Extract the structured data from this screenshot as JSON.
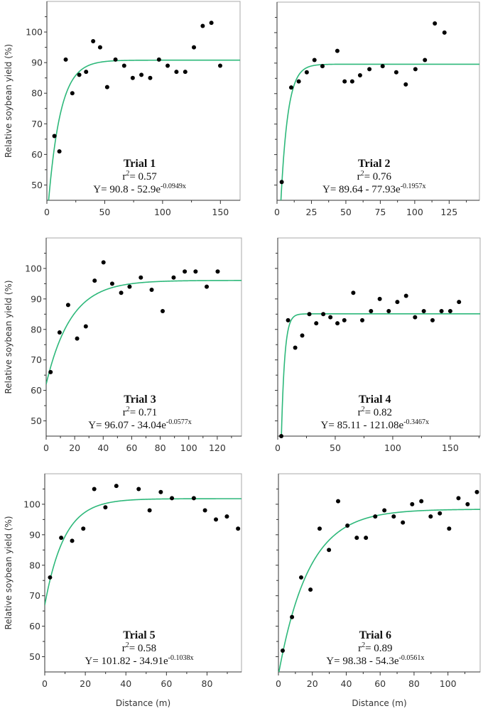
{
  "chart_data": [
    {
      "type": "scatter",
      "title": "Trial 1",
      "r2_prefix": "r",
      "r2_sup": "2",
      "r2_text": "= 0.57",
      "eq_main": "Y= 90.8 - 52.9e",
      "eq_exp": "-0.0949x",
      "fit": {
        "a": 90.8,
        "b": 52.9,
        "c": 0.0949
      },
      "xlim": [
        0,
        167
      ],
      "ylim": [
        45,
        110
      ],
      "xticks": [
        0,
        50,
        100,
        150
      ],
      "yticks": [
        50,
        60,
        70,
        80,
        90,
        100
      ],
      "xlabel": "",
      "ylabel": "Relative soybean yield (%)",
      "x": [
        6.5,
        10.8,
        16.3,
        22,
        28,
        33.9,
        40,
        46,
        52.1,
        59.3,
        66.8,
        74.2,
        81.7,
        89.3,
        96.9,
        104.4,
        112,
        119.6,
        127.1,
        134.7,
        142.2,
        149.8
      ],
      "y": [
        66,
        61,
        91,
        80,
        86,
        87,
        97,
        95,
        82,
        91,
        89,
        85,
        86,
        85,
        91,
        89,
        87,
        87,
        95,
        102,
        103,
        89
      ]
    },
    {
      "type": "scatter",
      "title": "Trial 2",
      "r2_prefix": "r",
      "r2_sup": "2",
      "r2_text": "= 0.76",
      "eq_main": "Y= 89.64  - 77.93e",
      "eq_exp": "-0.1957x",
      "fit": {
        "a": 89.64,
        "b": 77.93,
        "c": 0.1957
      },
      "xlim": [
        0,
        147
      ],
      "ylim": [
        45,
        110
      ],
      "xticks": [
        0,
        25,
        50,
        75,
        100,
        125
      ],
      "yticks": [],
      "xlabel": "",
      "ylabel": "",
      "x": [
        3.4,
        10.3,
        15.8,
        21.6,
        27.2,
        33,
        43.8,
        49.1,
        54.6,
        60.3,
        67.1,
        76.7,
        86.6,
        93.5,
        100.5,
        107.4,
        114.6,
        121.6
      ],
      "y": [
        51,
        82,
        84,
        87,
        91,
        89,
        94,
        84,
        84,
        86,
        88,
        89,
        87,
        83,
        88,
        91,
        103,
        100
      ]
    },
    {
      "type": "scatter",
      "title": "Trial 3",
      "r2_prefix": "r",
      "r2_sup": "2",
      "r2_text": "= 0.71",
      "eq_main": "Y= 96.07 - 34.04e",
      "eq_exp": "-0.0577x",
      "fit": {
        "a": 96.07,
        "b": 34.04,
        "c": 0.0577
      },
      "xlim": [
        0,
        137
      ],
      "ylim": [
        45,
        110
      ],
      "xticks": [
        0,
        20,
        40,
        60,
        80,
        100,
        120
      ],
      "yticks": [
        50,
        60,
        70,
        80,
        90,
        100
      ],
      "xlabel": "",
      "ylabel": "Relative soybean yield (%)",
      "x": [
        3.1,
        9.4,
        15.4,
        21.7,
        27.8,
        34,
        40.2,
        46.3,
        52.6,
        58.5,
        66.4,
        74,
        81.7,
        89.4,
        97.2,
        104.8,
        112.6,
        120.3
      ],
      "y": [
        66,
        79,
        88,
        77,
        81,
        96,
        102,
        95,
        92,
        94,
        97,
        93,
        86,
        97,
        99,
        99,
        94,
        99
      ]
    },
    {
      "type": "scatter",
      "title": "Trial 4",
      "r2_prefix": "r",
      "r2_sup": "2",
      "r2_text": "= 0.82",
      "eq_main": "Y= 85.11  - 121.08e",
      "eq_exp": "-0.3467x",
      "fit": {
        "a": 85.11,
        "b": 121.08,
        "c": 0.3467
      },
      "xlim": [
        0,
        176
      ],
      "ylim": [
        45,
        110
      ],
      "xticks": [
        0,
        50,
        100,
        150
      ],
      "yticks": [],
      "xlabel": "",
      "ylabel": "",
      "x": [
        3.1,
        9,
        15.2,
        21.3,
        27.5,
        33.5,
        39.6,
        45.8,
        51.9,
        57.9,
        65.7,
        73.5,
        81.1,
        88.7,
        96.5,
        104,
        111.6,
        119.4,
        127,
        134.6,
        142.4,
        150,
        157.6
      ],
      "y": [
        45,
        83,
        74,
        78,
        85,
        82,
        85,
        84,
        82,
        83,
        92,
        83,
        86,
        90,
        86,
        89,
        91,
        84,
        86,
        83,
        86,
        86,
        89
      ]
    },
    {
      "type": "scatter",
      "title": "Trial 5",
      "r2_prefix": "r",
      "r2_sup": "2",
      "r2_text": "= 0.58",
      "eq_main": "Y= 101.82 - 34.91e",
      "eq_exp": "-0.1038x",
      "fit": {
        "a": 101.82,
        "b": 34.91,
        "c": 0.1038
      },
      "xlim": [
        0,
        97
      ],
      "ylim": [
        45,
        110
      ],
      "xticks": [
        0,
        20,
        40,
        60,
        80
      ],
      "yticks": [
        50,
        60,
        70,
        80,
        90,
        100
      ],
      "xlabel": "Distance (m)",
      "ylabel": "Relative soybean yield (%)",
      "x": [
        2.6,
        8.1,
        13.5,
        19,
        24.4,
        29.9,
        35.3,
        46.3,
        51.7,
        57.2,
        62.7,
        73.5,
        79,
        84.4,
        89.8,
        95.3
      ],
      "y": [
        76,
        89,
        88,
        92,
        105,
        99,
        106,
        105,
        98,
        104,
        102,
        102,
        98,
        95,
        96,
        92
      ]
    },
    {
      "type": "scatter",
      "title": "Trial 6",
      "r2_prefix": "r",
      "r2_sup": "2",
      "r2_text": "= 0.89",
      "eq_main": "Y= 98.38  - 54.3e",
      "eq_exp": "-0.0561x",
      "fit": {
        "a": 98.38,
        "b": 54.3,
        "c": 0.0561
      },
      "xlim": [
        0,
        119
      ],
      "ylim": [
        45,
        110
      ],
      "xticks": [
        0,
        20,
        40,
        60,
        80,
        100
      ],
      "yticks": [],
      "xlabel": "Distance (m)",
      "ylabel": "",
      "x": [
        2.5,
        8,
        13.4,
        18.9,
        24.3,
        29.8,
        35.2,
        40.7,
        46.2,
        51.6,
        57.1,
        62.5,
        68,
        73.4,
        78.9,
        84.3,
        89.8,
        95.2,
        100.7,
        106.2,
        111.6,
        117.1
      ],
      "y": [
        52,
        63,
        76,
        72,
        92,
        85,
        101,
        93,
        89,
        89,
        96,
        98,
        96,
        94,
        100,
        101,
        96,
        97,
        92,
        102,
        100,
        104
      ]
    }
  ],
  "colors": {
    "fit_line": "#2db87a",
    "points": "#000000",
    "frame": "#a8a8a8"
  }
}
